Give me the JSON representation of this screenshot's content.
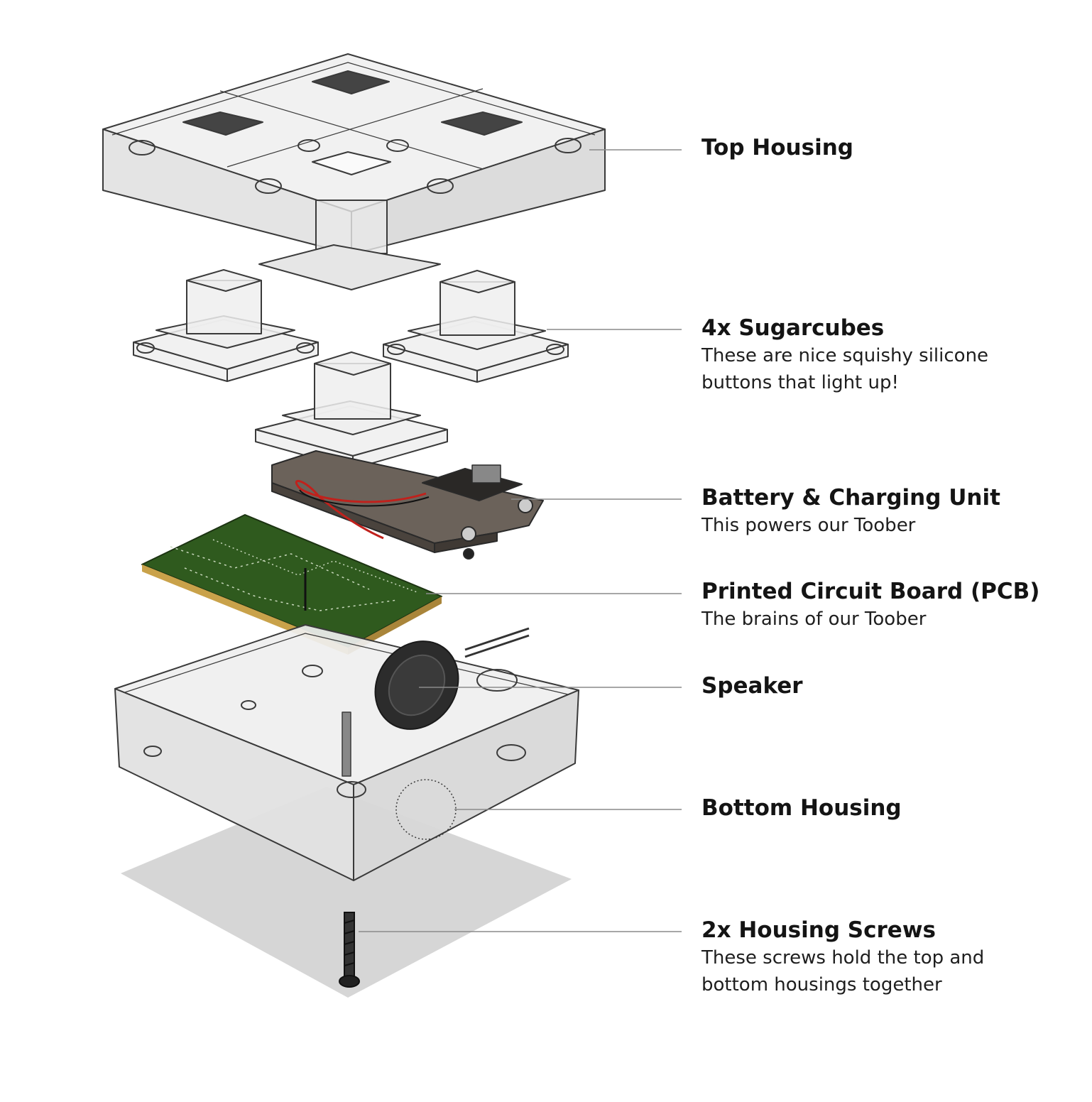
{
  "callouts": [
    {
      "id": "top-housing",
      "title": "Top Housing",
      "lines": []
    },
    {
      "id": "sugarcubes",
      "title": "4x Sugarcubes",
      "lines": [
        "These are nice squishy silicone",
        "buttons that light up!"
      ]
    },
    {
      "id": "battery",
      "title": "Battery & Charging Unit",
      "lines": [
        "This powers our Toober"
      ]
    },
    {
      "id": "pcb",
      "title": "Printed Circuit Board (PCB)",
      "lines": [
        "The brains of our Toober"
      ]
    },
    {
      "id": "speaker",
      "title": "Speaker",
      "lines": []
    },
    {
      "id": "bottom-housing",
      "title": "Bottom Housing",
      "lines": []
    },
    {
      "id": "screws",
      "title": "2x Housing Screws",
      "lines": [
        "These screws hold the top and",
        "bottom housings together"
      ]
    }
  ],
  "colors": {
    "text": "#141414",
    "leader_line": "#8a8a8a",
    "outline": "#3a3a3a",
    "housing_fill": "#eeeeee",
    "pcb_green": "#2f5a1e",
    "battery_board": "#6b625a",
    "shadow": "#d6d6d6"
  }
}
